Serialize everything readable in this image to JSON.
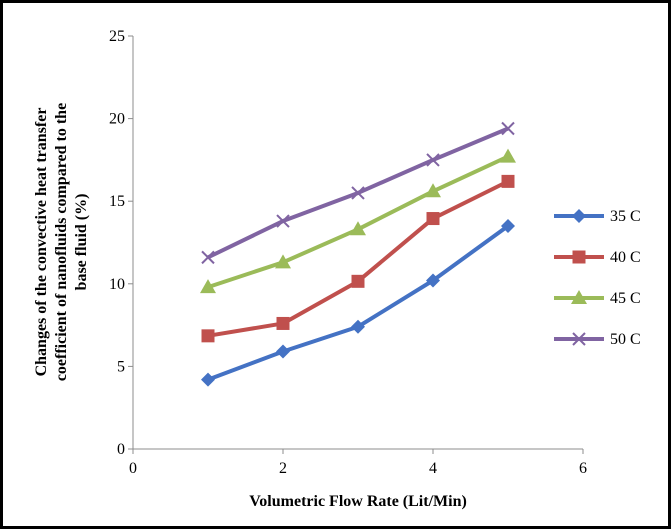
{
  "chart_data": {
    "type": "line",
    "title": "",
    "xlabel": "Volumetric Flow Rate (Lit/Min)",
    "ylabel_lines": [
      "Changes of the convective heat transfer",
      "coefficient of nanofluids compared to the",
      "base fluid (%)"
    ],
    "xlim": [
      0,
      6
    ],
    "ylim": [
      0,
      25
    ],
    "x_ticks": [
      0,
      2,
      4,
      6
    ],
    "y_ticks": [
      0,
      5,
      10,
      15,
      20,
      25
    ],
    "grid": false,
    "legend_position": "right",
    "x": [
      1,
      2,
      3,
      4,
      5
    ],
    "series": [
      {
        "name": "35 C",
        "color": "#4472C4",
        "marker": "diamond",
        "values": [
          4.2,
          5.9,
          7.4,
          10.2,
          13.5
        ]
      },
      {
        "name": "40 C",
        "color": "#C0504D",
        "marker": "square",
        "values": [
          6.85,
          7.6,
          10.15,
          13.95,
          16.2
        ]
      },
      {
        "name": "45 C",
        "color": "#9BBB59",
        "marker": "triangle",
        "values": [
          9.8,
          11.3,
          13.3,
          15.6,
          17.7
        ]
      },
      {
        "name": "50 C",
        "color": "#8064A2",
        "marker": "x",
        "values": [
          11.6,
          13.8,
          15.5,
          17.5,
          19.4
        ]
      }
    ]
  }
}
